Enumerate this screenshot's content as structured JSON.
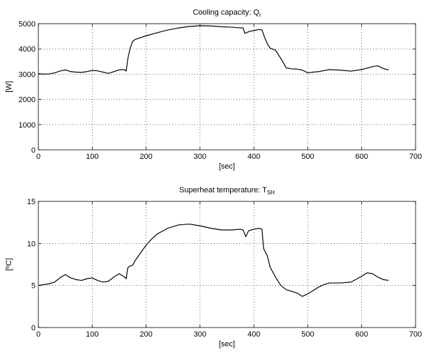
{
  "chart_data": [
    {
      "type": "line",
      "title_main": "Cooling capacity: Q",
      "title_sub": "r",
      "xlabel": "[sec]",
      "ylabel": "[W]",
      "xlim": [
        0,
        700
      ],
      "ylim": [
        0,
        5000
      ],
      "xticks": [
        0,
        100,
        200,
        300,
        400,
        500,
        600,
        700
      ],
      "yticks": [
        0,
        1000,
        2000,
        3000,
        4000,
        5000
      ],
      "grid": true,
      "line_color": "#000000",
      "series": [
        {
          "x": [
            0,
            10,
            20,
            30,
            40,
            50,
            60,
            70,
            80,
            90,
            100,
            110,
            120,
            130,
            140,
            150,
            160,
            163,
            166,
            170,
            175,
            180,
            190,
            200,
            220,
            240,
            260,
            280,
            300,
            320,
            340,
            360,
            370,
            380,
            383,
            386,
            390,
            400,
            410,
            415,
            420,
            425,
            430,
            440,
            450,
            460,
            470,
            480,
            490,
            500,
            510,
            520,
            540,
            560,
            580,
            600,
            620,
            630,
            640,
            650
          ],
          "y": [
            3020,
            3000,
            3010,
            3050,
            3120,
            3170,
            3100,
            3080,
            3070,
            3100,
            3150,
            3130,
            3080,
            3030,
            3100,
            3170,
            3180,
            3120,
            3600,
            4000,
            4300,
            4380,
            4450,
            4520,
            4640,
            4750,
            4830,
            4890,
            4920,
            4910,
            4880,
            4860,
            4840,
            4830,
            4620,
            4640,
            4680,
            4730,
            4770,
            4750,
            4450,
            4200,
            4030,
            3950,
            3620,
            3250,
            3210,
            3200,
            3160,
            3050,
            3080,
            3100,
            3180,
            3160,
            3120,
            3180,
            3300,
            3330,
            3220,
            3170
          ]
        }
      ]
    },
    {
      "type": "line",
      "title_main": "Superheat temperature: T",
      "title_sub": "SH",
      "xlabel": "[sec]",
      "ylabel": "[ºC]",
      "xlim": [
        0,
        700
      ],
      "ylim": [
        0,
        15
      ],
      "xticks": [
        0,
        100,
        200,
        300,
        400,
        500,
        600,
        700
      ],
      "yticks": [
        0,
        5,
        10,
        15
      ],
      "grid": true,
      "line_color": "#000000",
      "series": [
        {
          "x": [
            0,
            10,
            20,
            30,
            40,
            50,
            60,
            70,
            80,
            90,
            100,
            110,
            120,
            130,
            140,
            150,
            160,
            163,
            166,
            170,
            175,
            180,
            190,
            200,
            210,
            220,
            240,
            260,
            280,
            300,
            320,
            340,
            360,
            375,
            380,
            385,
            390,
            400,
            410,
            415,
            418,
            425,
            430,
            440,
            450,
            460,
            470,
            480,
            490,
            500,
            510,
            520,
            530,
            540,
            560,
            580,
            600,
            610,
            620,
            630,
            640,
            650
          ],
          "y": [
            5.0,
            5.1,
            5.2,
            5.4,
            5.9,
            6.3,
            5.9,
            5.7,
            5.6,
            5.8,
            5.9,
            5.6,
            5.4,
            5.5,
            6.0,
            6.4,
            6.0,
            5.8,
            7.1,
            7.3,
            7.4,
            8.0,
            8.9,
            9.8,
            10.5,
            11.1,
            11.8,
            12.2,
            12.3,
            12.1,
            11.8,
            11.6,
            11.6,
            11.7,
            11.6,
            10.8,
            11.5,
            11.7,
            11.8,
            11.7,
            9.4,
            8.5,
            7.2,
            6.0,
            5.0,
            4.5,
            4.3,
            4.1,
            3.7,
            4.0,
            4.4,
            4.8,
            5.1,
            5.3,
            5.3,
            5.4,
            6.1,
            6.5,
            6.4,
            6.0,
            5.7,
            5.6
          ]
        }
      ]
    }
  ]
}
